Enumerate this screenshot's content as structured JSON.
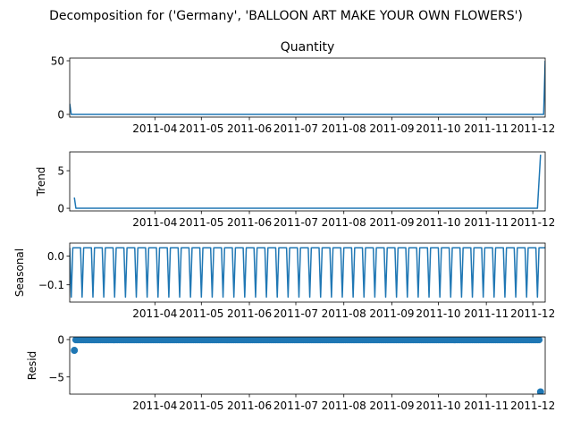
{
  "figure": {
    "suptitle": "Decomposition for ('Germany', 'BALLOON ART MAKE YOUR OWN FLOWERS')"
  },
  "chart_data": [
    {
      "type": "line",
      "title": "Quantity",
      "ylabel": "",
      "ylim": [
        -2.5,
        52.5
      ],
      "yticks": [
        0,
        50
      ],
      "ytick_labels": [
        "0",
        "50"
      ],
      "xlim": [
        "2011-02-05",
        "2011-12-09"
      ],
      "xticks": [
        "2011-04",
        "2011-05",
        "2011-06",
        "2011-07",
        "2011-08",
        "2011-09",
        "2011-10",
        "2011-11",
        "2011-12"
      ],
      "xtick_labels": [
        "2011-04",
        "2011-05",
        "2011-06",
        "2011-07",
        "2011-08",
        "2011-09",
        "2011-10",
        "2011-11",
        "2011-12"
      ],
      "color": "#1f77b4",
      "x": [
        "2011-02-05",
        "2011-02-06",
        "2011-12-07",
        "2011-12-08",
        "2011-12-09"
      ],
      "y": [
        10,
        0,
        0,
        0,
        50
      ]
    },
    {
      "type": "line",
      "title": "",
      "ylabel": "Trend",
      "ylim": [
        -0.35,
        7.5
      ],
      "yticks": [
        0,
        5
      ],
      "ytick_labels": [
        "0",
        "5"
      ],
      "xlim": [
        "2011-02-05",
        "2011-12-09"
      ],
      "xticks": [
        "2011-04",
        "2011-05",
        "2011-06",
        "2011-07",
        "2011-08",
        "2011-09",
        "2011-10",
        "2011-11",
        "2011-12"
      ],
      "xtick_labels": [
        "2011-04",
        "2011-05",
        "2011-06",
        "2011-07",
        "2011-08",
        "2011-09",
        "2011-10",
        "2011-11",
        "2011-12"
      ],
      "color": "#1f77b4",
      "x": [
        "2011-02-08",
        "2011-02-09",
        "2011-12-04",
        "2011-12-06"
      ],
      "y": [
        1.43,
        0,
        0,
        7.14
      ]
    },
    {
      "type": "line",
      "title": "",
      "ylabel": "Seasonal",
      "ylim": [
        -0.16,
        0.045
      ],
      "yticks": [
        0.0,
        -0.1
      ],
      "ytick_labels": [
        "0.0",
        "−0.1"
      ],
      "xlim": [
        "2011-02-05",
        "2011-12-09"
      ],
      "xticks": [
        "2011-04",
        "2011-05",
        "2011-06",
        "2011-07",
        "2011-08",
        "2011-09",
        "2011-10",
        "2011-11",
        "2011-12"
      ],
      "xtick_labels": [
        "2011-04",
        "2011-05",
        "2011-06",
        "2011-07",
        "2011-08",
        "2011-09",
        "2011-10",
        "2011-11",
        "2011-12"
      ],
      "color": "#1f77b4",
      "period_days": 7,
      "pattern": [
        0.0286,
        -0.1429,
        0.0286,
        0.0286,
        0.0286,
        0.0286,
        0.0286
      ]
    },
    {
      "type": "scatter",
      "title": "",
      "ylabel": "Resid",
      "ylim": [
        -7.3,
        0.35
      ],
      "yticks": [
        0,
        -5
      ],
      "ytick_labels": [
        "0",
        "−5"
      ],
      "xlim": [
        "2011-02-05",
        "2011-12-09"
      ],
      "xticks": [
        "2011-04",
        "2011-05",
        "2011-06",
        "2011-07",
        "2011-08",
        "2011-09",
        "2011-10",
        "2011-11",
        "2011-12"
      ],
      "xtick_labels": [
        "2011-04",
        "2011-05",
        "2011-06",
        "2011-07",
        "2011-08",
        "2011-09",
        "2011-10",
        "2011-11",
        "2011-12"
      ],
      "color": "#1f77b4",
      "x_start": "2011-02-08",
      "x_end": "2011-12-06",
      "baseline": -0.03,
      "outliers": [
        {
          "x": "2011-02-08",
          "y": -1.45
        },
        {
          "x": "2011-12-06",
          "y": -7.0
        }
      ]
    }
  ]
}
